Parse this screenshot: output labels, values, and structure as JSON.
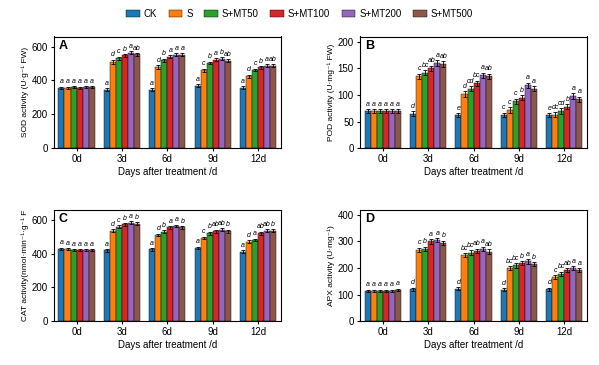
{
  "chart_data": [
    {
      "type": "bar",
      "annotations": [
        "A"
      ],
      "categories": [
        "0d",
        "3d",
        "6d",
        "9d",
        "12d"
      ],
      "x_label": "Days after treatment /d",
      "y_label": "SOD activity (U·g⁻¹ FW)",
      "ylim": [
        0,
        660
      ],
      "yticks": [
        0,
        200,
        400,
        600
      ],
      "legend": "upper center",
      "series": [
        {
          "name": "CK",
          "values": [
            358,
            345,
            345,
            370,
            358
          ],
          "errors": [
            6,
            8,
            8,
            8,
            8
          ],
          "letters": [
            "a",
            "a",
            "a",
            "a",
            "a"
          ]
        },
        {
          "name": "S",
          "values": [
            358,
            510,
            480,
            460,
            425
          ],
          "errors": [
            6,
            12,
            12,
            10,
            10
          ],
          "letters": [
            "a",
            "d",
            "d",
            "c",
            "d"
          ]
        },
        {
          "name": "S+MT50",
          "values": [
            360,
            532,
            520,
            503,
            462
          ],
          "errors": [
            6,
            8,
            8,
            8,
            8
          ],
          "letters": [
            "a",
            "c",
            "b",
            "b",
            "c"
          ]
        },
        {
          "name": "S+MT100",
          "values": [
            358,
            548,
            540,
            522,
            478
          ],
          "errors": [
            6,
            8,
            8,
            8,
            8
          ],
          "letters": [
            "a",
            "b",
            "a",
            "a",
            "b"
          ]
        },
        {
          "name": "S+MT200",
          "values": [
            362,
            565,
            552,
            528,
            488
          ],
          "errors": [
            6,
            8,
            8,
            8,
            8
          ],
          "letters": [
            "a",
            "a",
            "a",
            "b",
            "a"
          ]
        },
        {
          "name": "S+MT500",
          "values": [
            362,
            555,
            552,
            518,
            488
          ],
          "errors": [
            6,
            8,
            8,
            8,
            8
          ],
          "letters": [
            "a",
            "ab",
            "a",
            "ab",
            "ab"
          ]
        }
      ]
    },
    {
      "type": "bar",
      "annotations": [
        "B"
      ],
      "categories": [
        "0d",
        "3d",
        "6d",
        "9d",
        "12d"
      ],
      "x_label": "Days after treatment /d",
      "y_label": "POD activity (U·mg⁻¹ FW)",
      "ylim": [
        0,
        210
      ],
      "yticks": [
        0,
        50,
        100,
        150,
        200
      ],
      "series": [
        {
          "name": "CK",
          "values": [
            70,
            65,
            62,
            63,
            62
          ],
          "errors": [
            3,
            4,
            4,
            4,
            4
          ],
          "letters": [
            "a",
            "d",
            "e",
            "c",
            "e"
          ]
        },
        {
          "name": "S",
          "values": [
            70,
            135,
            102,
            72,
            63
          ],
          "errors": [
            3,
            5,
            5,
            5,
            5
          ],
          "letters": [
            "a",
            "c",
            "d",
            "c",
            "dc"
          ]
        },
        {
          "name": "S+MT50",
          "values": [
            70,
            142,
            112,
            88,
            70
          ],
          "errors": [
            3,
            5,
            5,
            5,
            5
          ],
          "letters": [
            "a",
            "bc",
            "cd",
            "c",
            "cd"
          ]
        },
        {
          "name": "S+MT100",
          "values": [
            70,
            150,
            122,
            95,
            78
          ],
          "errors": [
            3,
            5,
            5,
            5,
            5
          ],
          "letters": [
            "a",
            "ab",
            "bc",
            "b",
            "b"
          ]
        },
        {
          "name": "S+MT200",
          "values": [
            70,
            160,
            137,
            118,
            98
          ],
          "errors": [
            3,
            5,
            5,
            5,
            5
          ],
          "letters": [
            "a",
            "a",
            "a",
            "a",
            "a"
          ]
        },
        {
          "name": "S+MT500",
          "values": [
            70,
            158,
            135,
            112,
            92
          ],
          "errors": [
            3,
            5,
            5,
            5,
            5
          ],
          "letters": [
            "a",
            "ab",
            "ab",
            "a",
            "a"
          ]
        }
      ]
    },
    {
      "type": "bar",
      "annotations": [
        "C"
      ],
      "categories": [
        "0d",
        "3d",
        "6d",
        "9d",
        "12d"
      ],
      "x_label": "Days after treatment /d",
      "y_label": "CAT activity(nmol·min⁻¹·g⁻¹ F",
      "ylim": [
        0,
        660
      ],
      "yticks": [
        0,
        200,
        400,
        600
      ],
      "series": [
        {
          "name": "CK",
          "values": [
            428,
            418,
            425,
            432,
            412
          ],
          "errors": [
            6,
            8,
            8,
            8,
            8
          ],
          "letters": [
            "a",
            "a",
            "a",
            "a",
            "a"
          ]
        },
        {
          "name": "S",
          "values": [
            425,
            535,
            510,
            492,
            470
          ],
          "errors": [
            6,
            8,
            8,
            8,
            8
          ],
          "letters": [
            "a",
            "d",
            "d",
            "c",
            "d"
          ]
        },
        {
          "name": "S+MT50",
          "values": [
            420,
            558,
            530,
            520,
            480
          ],
          "errors": [
            6,
            8,
            8,
            8,
            8
          ],
          "letters": [
            "a",
            "c",
            "b",
            "b",
            "a"
          ]
        },
        {
          "name": "S+MT100",
          "values": [
            420,
            572,
            555,
            532,
            520
          ],
          "errors": [
            6,
            8,
            8,
            8,
            8
          ],
          "letters": [
            "a",
            "b",
            "a",
            "ab",
            "ab"
          ]
        },
        {
          "name": "S+MT200",
          "values": [
            420,
            582,
            562,
            542,
            535
          ],
          "errors": [
            6,
            8,
            8,
            8,
            8
          ],
          "letters": [
            "a",
            "a",
            "a",
            "ab",
            "ab"
          ]
        },
        {
          "name": "S+MT500",
          "values": [
            420,
            577,
            555,
            532,
            535
          ],
          "errors": [
            6,
            8,
            8,
            8,
            8
          ],
          "letters": [
            "a",
            "b",
            "b",
            "b",
            "b"
          ]
        }
      ]
    },
    {
      "type": "bar",
      "annotations": [
        "D"
      ],
      "categories": [
        "0d",
        "3d",
        "6d",
        "9d",
        "12d"
      ],
      "x_label": "Days after treatment /d",
      "y_label": "APX activity (U·mg⁻¹)",
      "ylim": [
        0,
        420
      ],
      "yticks": [
        0,
        100,
        200,
        300,
        400
      ],
      "series": [
        {
          "name": "CK",
          "values": [
            115,
            120,
            122,
            118,
            120
          ],
          "errors": [
            4,
            6,
            6,
            6,
            6
          ],
          "letters": [
            "a",
            "d",
            "d",
            "d",
            "d"
          ]
        },
        {
          "name": "S",
          "values": [
            115,
            268,
            248,
            200,
            165
          ],
          "errors": [
            4,
            8,
            8,
            8,
            8
          ],
          "letters": [
            "a",
            "c",
            "bc",
            "bc",
            "c"
          ]
        },
        {
          "name": "S+MT50",
          "values": [
            115,
            272,
            258,
            210,
            178
          ],
          "errors": [
            4,
            8,
            8,
            8,
            8
          ],
          "letters": [
            "a",
            "b",
            "bc",
            "bc",
            "bc"
          ]
        },
        {
          "name": "S+MT100",
          "values": [
            115,
            300,
            265,
            218,
            192
          ],
          "errors": [
            4,
            8,
            8,
            8,
            8
          ],
          "letters": [
            "a",
            "a",
            "ab",
            "b",
            "ab"
          ]
        },
        {
          "name": "S+MT200",
          "values": [
            115,
            305,
            272,
            225,
            200
          ],
          "errors": [
            4,
            8,
            8,
            8,
            8
          ],
          "letters": [
            "a",
            "a",
            "a",
            "a",
            "a"
          ]
        },
        {
          "name": "S+MT500",
          "values": [
            118,
            295,
            262,
            215,
            192
          ],
          "errors": [
            4,
            8,
            8,
            8,
            8
          ],
          "letters": [
            "a",
            "b",
            "ab",
            "b",
            "a"
          ]
        }
      ]
    }
  ]
}
